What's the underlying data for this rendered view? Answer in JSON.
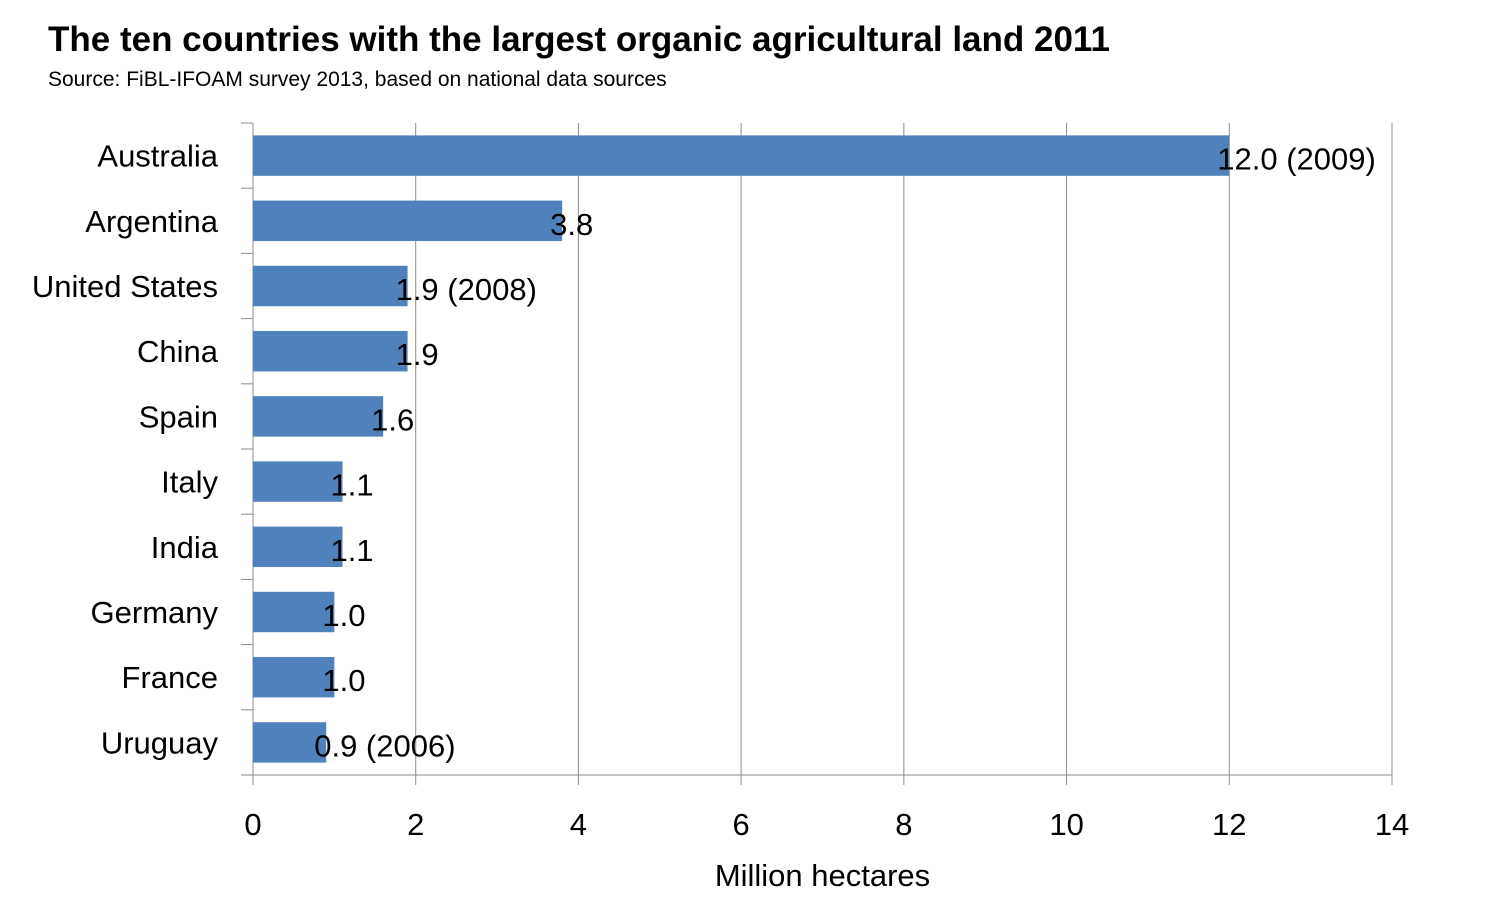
{
  "title": "The ten countries with the largest organic agricultural land 2011",
  "subtitle": "Source: FiBL-IFOAM survey 2013, based on national data sources",
  "chart_data": {
    "type": "bar",
    "orientation": "horizontal",
    "title": "The ten countries with the largest organic agricultural land 2011",
    "subtitle": "Source: FiBL-IFOAM survey 2013, based on national data sources",
    "categories": [
      "Australia",
      "Argentina",
      "United States",
      "China",
      "Spain",
      "Italy",
      "India",
      "Germany",
      "France",
      "Uruguay"
    ],
    "values": [
      12.0,
      3.8,
      1.9,
      1.9,
      1.6,
      1.1,
      1.1,
      1.0,
      1.0,
      0.9
    ],
    "data_labels": [
      "12.0 (2009)",
      "3.8",
      "1.9 (2008)",
      "1.9",
      "1.6",
      "1.1",
      "1.1",
      "1.0",
      "1.0",
      "0.9 (2006)"
    ],
    "xlabel": "Million hectares",
    "ylabel": "",
    "xlim": [
      0,
      14
    ],
    "xticks": [
      0,
      2,
      4,
      6,
      8,
      10,
      12,
      14
    ],
    "bar_color": "#4f81bd",
    "grid": "vertical",
    "legend": "none"
  }
}
